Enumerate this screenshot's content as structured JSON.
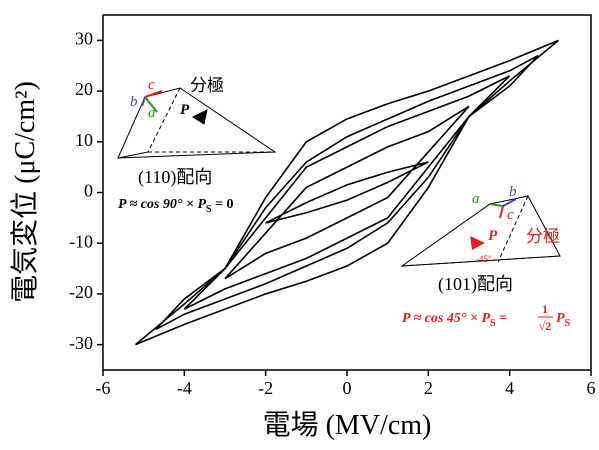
{
  "chart_data": {
    "type": "line",
    "xlabel": "電場 (MV/cm)",
    "ylabel": "電気変位 (μC/cm²)",
    "xlim": [
      -6,
      6
    ],
    "xticks": [
      -6,
      -4,
      -2,
      0,
      2,
      4,
      6
    ],
    "ylim": [
      -35,
      35
    ],
    "yticks": [
      -30,
      -20,
      -10,
      0,
      10,
      20,
      30
    ],
    "color": "#000000",
    "series": [
      {
        "x": [
          2,
          1,
          0,
          -1,
          -2,
          -1,
          0,
          1,
          2
        ],
        "y": [
          6,
          4,
          1.5,
          -2,
          -6,
          -4,
          -1.5,
          2,
          6
        ]
      },
      {
        "x": [
          3,
          2,
          1,
          0,
          -1,
          -2,
          -3,
          -2,
          -1,
          0,
          1,
          2,
          3
        ],
        "y": [
          17,
          12,
          9,
          5,
          1,
          -8,
          -17,
          -12,
          -9,
          -5,
          -1,
          8,
          17
        ]
      },
      {
        "x": [
          4,
          3,
          2,
          1,
          0,
          -1,
          -2,
          -3,
          -4,
          -3,
          -2,
          -1,
          0,
          1,
          2,
          3,
          4
        ],
        "y": [
          23,
          19,
          16,
          13,
          9,
          5,
          -5,
          -15,
          -23,
          -19,
          -16,
          -13,
          -9,
          -5,
          5,
          15,
          23
        ]
      },
      {
        "x": [
          4.7,
          4,
          3,
          2,
          1,
          0,
          -1,
          -2,
          -3,
          -4,
          -4.7,
          -4,
          -3,
          -2,
          -1,
          0,
          1,
          2,
          3,
          4,
          4.7
        ],
        "y": [
          27,
          24,
          21,
          18,
          14.5,
          11,
          6,
          -3,
          -15,
          -21,
          -27,
          -24,
          -21,
          -18,
          -14.5,
          -11,
          -6,
          3,
          15,
          21,
          27
        ]
      },
      {
        "x": [
          5.2,
          4,
          3,
          2,
          1,
          0,
          -1,
          -2,
          -3,
          -4,
          -5.2,
          -4,
          -3,
          -2,
          -1,
          0,
          1,
          2,
          3,
          4,
          5.2
        ],
        "y": [
          30,
          26,
          23,
          20,
          17.5,
          14.5,
          10,
          -1,
          -15,
          -22,
          -30,
          -26,
          -23,
          -20,
          -17.5,
          -14.5,
          -10,
          1,
          15,
          22,
          30
        ]
      }
    ],
    "annotations": {
      "left_polar": "分極",
      "left_a": "a",
      "left_b": "b",
      "left_c": "c",
      "left_p": "P",
      "left_orient": "(110)配向",
      "left_formula_main": "P ≈ cos 90° × P",
      "left_formula_sub": "S",
      "left_formula_end": " = 0",
      "right_polar": "分極",
      "right_a": "a",
      "right_b": "b",
      "right_c": "c",
      "right_p": "P",
      "right_angle": "-45°",
      "right_orient": "(101)配向",
      "right_formula_main": "P ≈ cos 45° × P",
      "right_formula_sub": "S",
      "right_formula_eq": " = ",
      "right_frac_num": "1",
      "right_frac_den": "√2",
      "right_formula_p": "P",
      "right_formula_sub2": "S"
    }
  }
}
